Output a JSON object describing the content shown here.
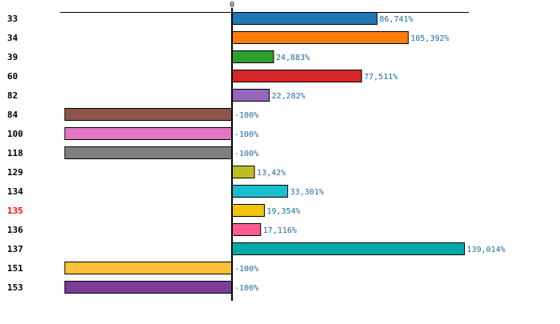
{
  "chart_data": {
    "type": "bar",
    "orientation": "horizontal",
    "title": "",
    "xlabel": "",
    "ylabel": "",
    "x_tick_labels": [
      "0"
    ],
    "xlim": [
      -102.5,
      141.5
    ],
    "grid": false,
    "legend": "none",
    "categories": [
      "33",
      "34",
      "39",
      "60",
      "82",
      "84",
      "100",
      "118",
      "129",
      "134",
      "135",
      "136",
      "137",
      "151",
      "153"
    ],
    "highlighted_category": "135",
    "highlight_color": "#ff0000",
    "values": [
      86.741,
      105.392,
      24.883,
      77.511,
      22.282,
      -100,
      -100,
      -100,
      13.42,
      33.301,
      19.354,
      17.116,
      139.014,
      -100,
      -100
    ],
    "value_labels": [
      "86,741%",
      "105,392%",
      "24,883%",
      "77,511%",
      "22,282%",
      "-100%",
      "-100%",
      "-100%",
      "13,42%",
      "33,301%",
      "19,354%",
      "17,116%",
      "139,014%",
      "-100%",
      "-100%"
    ],
    "colors": [
      "#1f77b4",
      "#ff7f0e",
      "#2ca02c",
      "#d62728",
      "#9467bd",
      "#8c564b",
      "#e377c2",
      "#7f7f7f",
      "#bcbd22",
      "#17becf",
      "#f1c40f",
      "#ff5c93",
      "#00aaa6",
      "#ffc13b",
      "#7d3c98"
    ],
    "value_label_color": "#1f6aa5"
  }
}
